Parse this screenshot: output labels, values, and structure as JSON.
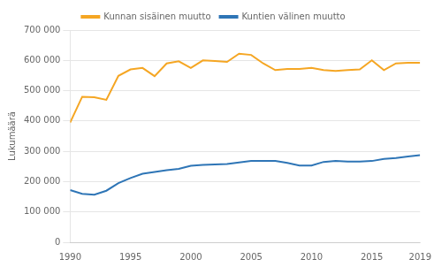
{
  "chart_data": {
    "type": "line",
    "ylabel": "Lukumäärä",
    "x": [
      1990,
      1991,
      1992,
      1993,
      1994,
      1995,
      1996,
      1997,
      1998,
      1999,
      2000,
      2001,
      2002,
      2003,
      2004,
      2005,
      2006,
      2007,
      2008,
      2009,
      2010,
      2011,
      2012,
      2013,
      2014,
      2015,
      2016,
      2017,
      2018,
      2019
    ],
    "series": [
      {
        "name": "Kunnan sisäinen muutto",
        "color": "#F5A623",
        "values": [
          395000,
          480000,
          478000,
          470000,
          549000,
          570000,
          575000,
          548000,
          590000,
          597000,
          575000,
          600000,
          598000,
          595000,
          622000,
          618000,
          590000,
          568000,
          572000,
          572000,
          575000,
          568000,
          565000,
          568000,
          570000,
          600000,
          568000,
          590000,
          592000,
          592000
        ]
      },
      {
        "name": "Kuntien välinen muutto",
        "color": "#2E75B6",
        "values": [
          172000,
          160000,
          157000,
          170000,
          195000,
          212000,
          226000,
          232000,
          238000,
          242000,
          252000,
          255000,
          257000,
          258000,
          263000,
          268000,
          268000,
          268000,
          262000,
          253000,
          253000,
          265000,
          268000,
          266000,
          266000,
          268000,
          275000,
          278000,
          283000,
          287000
        ]
      }
    ],
    "xlim": [
      1990,
      2019
    ],
    "xticks": [
      1990,
      1995,
      2000,
      2005,
      2010,
      2015,
      2019
    ],
    "ylim": [
      0,
      700000
    ],
    "yticks": [
      0,
      {
        "value": 100000,
        "label": "100 000"
      },
      {
        "value": 200000,
        "label": "200 000"
      },
      {
        "value": 300000,
        "label": "300 000"
      },
      {
        "value": 400000,
        "label": "400 000"
      },
      {
        "value": 500000,
        "label": "500 000"
      },
      {
        "value": 600000,
        "label": "600 000"
      },
      {
        "value": 700000,
        "label": "700 000"
      }
    ],
    "grid": true
  }
}
